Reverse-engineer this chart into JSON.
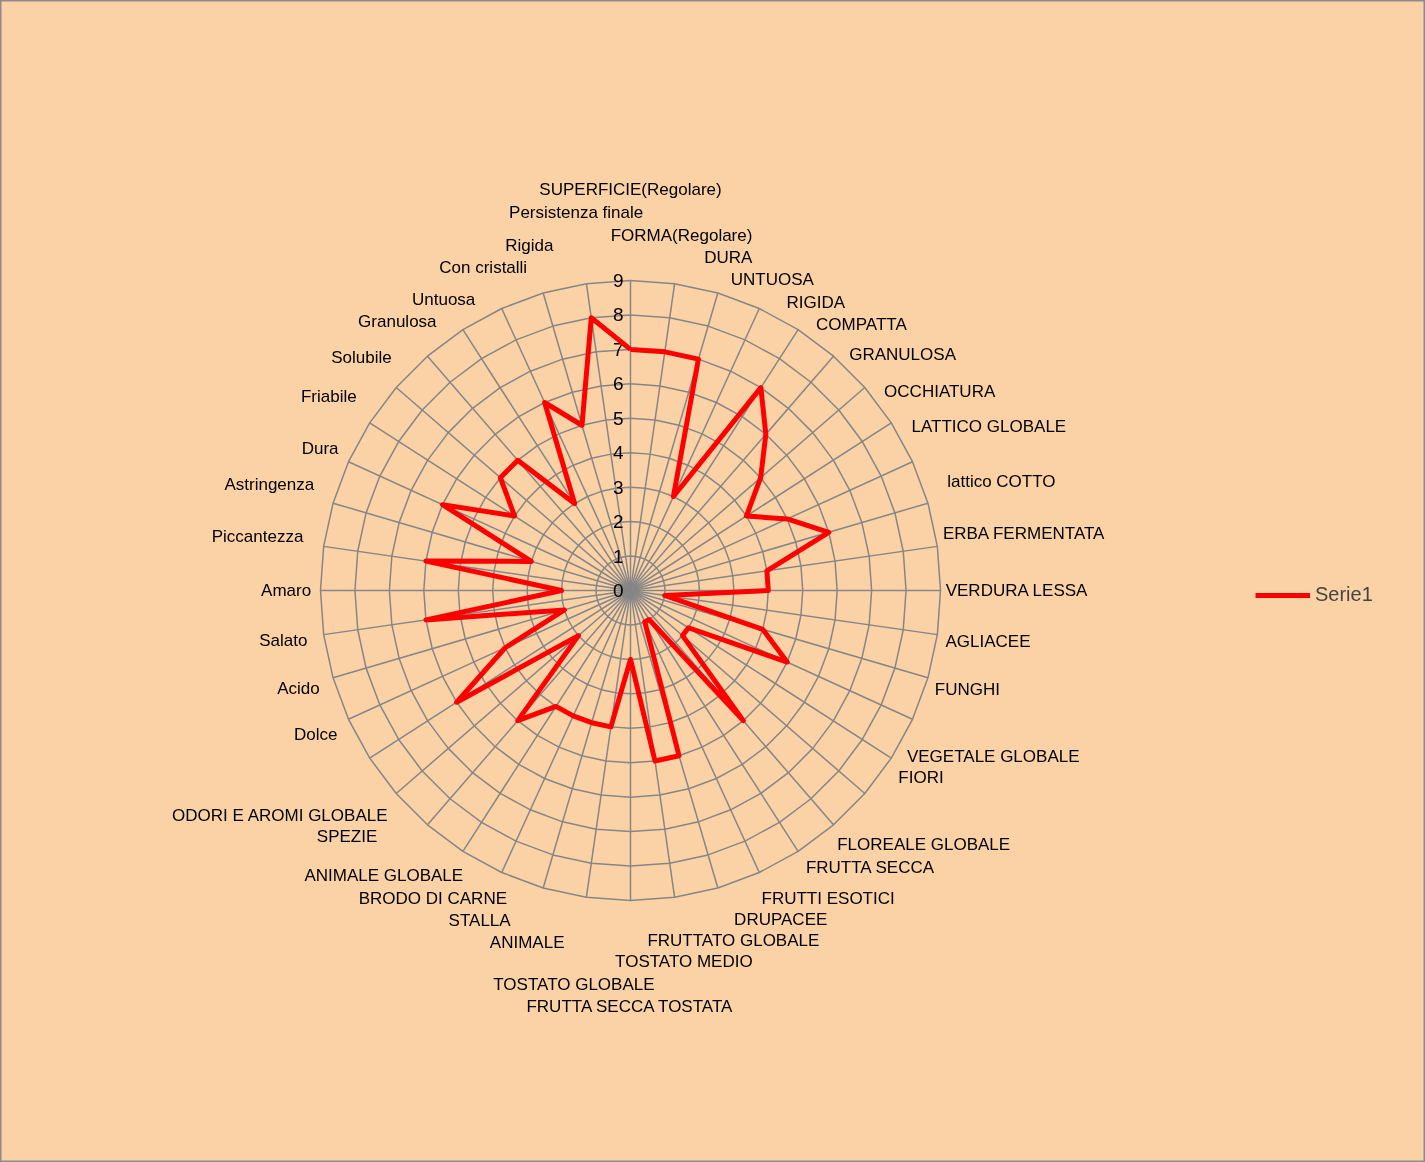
{
  "chart_data": {
    "type": "radar",
    "categories": [
      "SUPERFICIE(Regolare)",
      "FORMA(Regolare)",
      "DURA",
      "UNTUOSA",
      "RIGIDA",
      "COMPATTA",
      "GRANULOSA",
      "OCCHIATURA",
      "LATTICO GLOBALE",
      "lattico COTTO",
      "ERBA FERMENTATA",
      "VERDURA LESSA",
      "AGLIACEE",
      "FUNGHI",
      "VEGETALE GLOBALE",
      "FIORI",
      "FLOREALE GLOBALE",
      "FRUTTA SECCA",
      "FRUTTI ESOTICI",
      "DRUPACEE",
      "FRUTTATO GLOBALE",
      "TOSTATO MEDIO",
      "FRUTTA SECCA TOSTATA",
      "TOSTATO GLOBALE",
      "ANIMALE",
      "STALLA",
      "BRODO DI CARNE",
      "ANIMALE GLOBALE",
      "SPEZIE",
      "ODORI E AROMI GLOBALE",
      "Dolce",
      "Acido",
      "Salato",
      "Amaro",
      "Piccantezza",
      "Astringenza",
      "Dura",
      "Friabile",
      "Solubile",
      "Granulosa",
      "Untuosa",
      "Con cristalli",
      "Rigida",
      "Persistenza finale"
    ],
    "series": [
      {
        "name": "Serie1",
        "color": "#ff0000",
        "values": [
          7,
          7,
          7,
          3,
          7,
          6,
          5,
          4,
          5,
          6,
          4,
          4,
          1,
          4,
          5,
          2,
          2,
          5,
          1,
          1,
          5,
          5,
          2,
          4,
          4,
          4,
          4,
          5,
          2,
          6,
          4,
          2,
          6,
          2,
          6,
          3,
          6,
          4,
          5,
          5,
          3,
          6,
          5,
          8
        ]
      }
    ],
    "ylim": [
      0,
      9
    ],
    "yticks": [
      0,
      1,
      2,
      3,
      4,
      5,
      6,
      7,
      8,
      9
    ],
    "grid": true,
    "legend": "right",
    "marker": "none",
    "line_style": "solid"
  }
}
